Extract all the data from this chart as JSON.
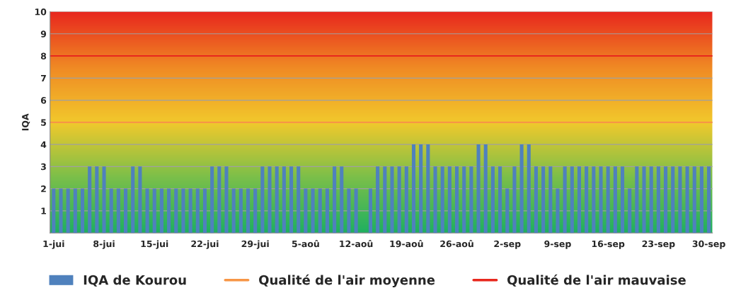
{
  "chart_data": {
    "type": "bar",
    "ylabel": "IQA",
    "categories": [
      "1-jui",
      null,
      null,
      null,
      null,
      null,
      null,
      "8-jui",
      null,
      null,
      null,
      null,
      null,
      null,
      "15-jui",
      null,
      null,
      null,
      null,
      null,
      null,
      "22-jui",
      null,
      null,
      null,
      null,
      null,
      null,
      "29-jui",
      null,
      null,
      null,
      null,
      null,
      null,
      "5-aoû",
      null,
      null,
      null,
      null,
      null,
      null,
      "12-aoû",
      null,
      null,
      null,
      null,
      null,
      null,
      "19-aoû",
      null,
      null,
      null,
      null,
      null,
      null,
      "26-aoû",
      null,
      null,
      null,
      null,
      null,
      null,
      "2-sep",
      null,
      null,
      null,
      null,
      null,
      null,
      "9-sep",
      null,
      null,
      null,
      null,
      null,
      null,
      "16-sep",
      null,
      null,
      null,
      null,
      null,
      null,
      "23-sep",
      null,
      null,
      null,
      null,
      null,
      null,
      "30-sep"
    ],
    "series": [
      {
        "name": "IQA de Kourou",
        "color": "#4f81bd",
        "values": [
          2,
          2,
          2,
          2,
          2,
          3,
          3,
          3,
          2,
          2,
          2,
          3,
          3,
          2,
          2,
          2,
          2,
          2,
          2,
          2,
          2,
          2,
          3,
          3,
          3,
          2,
          2,
          2,
          2,
          3,
          3,
          3,
          3,
          3,
          3,
          2,
          2,
          2,
          2,
          3,
          3,
          2,
          2,
          null,
          2,
          3,
          3,
          3,
          3,
          3,
          4,
          4,
          4,
          3,
          3,
          3,
          3,
          3,
          3,
          4,
          4,
          3,
          3,
          2,
          3,
          4,
          4,
          3,
          3,
          3,
          2,
          3,
          3,
          3,
          3,
          3,
          3,
          3,
          3,
          3,
          2,
          3,
          3,
          3,
          3,
          3,
          3,
          3,
          3,
          3,
          3,
          3
        ]
      }
    ],
    "ref_lines": [
      {
        "axis": "y",
        "value": 5,
        "label": "Qualité de l'air moyenne",
        "color": "#f79646"
      },
      {
        "axis": "y",
        "value": 8,
        "label": "Qualité de l'air mauvaise",
        "color": "#e8281e"
      }
    ],
    "ylim": [
      0,
      10
    ],
    "yticks": [
      1,
      2,
      3,
      4,
      5,
      6,
      7,
      8,
      9,
      10
    ],
    "grid": "y",
    "legend": "bottom"
  }
}
